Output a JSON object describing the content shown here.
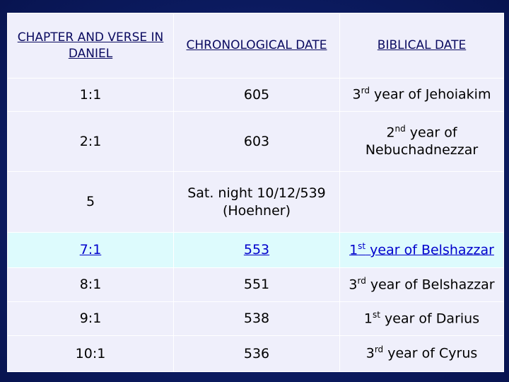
{
  "table": {
    "header": [
      "CHAPTER AND VERSE IN DANIEL",
      "CHRONOLOGICAL DATE",
      "BIBLICAL DATE"
    ],
    "rows": [
      {
        "chapter": "1:1",
        "date": "605",
        "biblical": {
          "pre": "3",
          "sup": "rd",
          "post": " year of Jehoiakim"
        }
      },
      {
        "chapter": "2:1",
        "date": "603",
        "biblical": {
          "pre": "2",
          "sup": "nd",
          "post": " year of Nebuchadnezzar"
        }
      },
      {
        "chapter": "5",
        "date": "Sat. night 10/12/539 (Hoehner)"
      },
      {
        "chapter": "7:1",
        "date": "553",
        "biblical": {
          "pre": "1",
          "sup": "st",
          "post": " year of Belshazzar"
        },
        "highlight": true
      },
      {
        "chapter": "8:1",
        "date": "551",
        "biblical": {
          "pre": "3",
          "sup": "rd",
          "post": " year of Belshazzar"
        }
      },
      {
        "chapter": "9:1",
        "date": "538",
        "biblical": {
          "pre": "1",
          "sup": "st",
          "post": " year of Darius"
        }
      },
      {
        "chapter": "10:1",
        "date": "536",
        "biblical": {
          "pre": "3",
          "sup": "rd",
          "post": " year of Cyrus"
        }
      }
    ]
  }
}
